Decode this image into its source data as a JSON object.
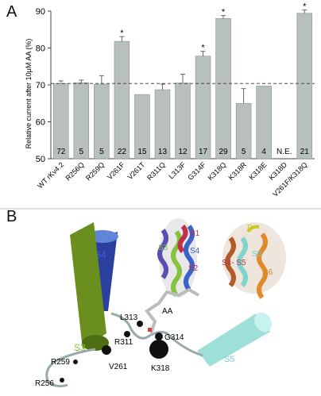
{
  "panels": {
    "a": "A",
    "b": "B"
  },
  "chart_data": {
    "type": "bar",
    "ylabel": "Relative current after 10μM AA (%)",
    "ylim": [
      50,
      90
    ],
    "yticks": [
      50,
      60,
      70,
      80,
      90
    ],
    "reference_line": 70.4,
    "categories": [
      "WT rKv4.2",
      "R256Q",
      "R259Q",
      "V261F",
      "V261T",
      "R311Q",
      "L313F",
      "G314F",
      "K318Q",
      "K318R",
      "K318E",
      "K318D",
      "V261F/K318Q"
    ],
    "values": [
      70.3,
      70.6,
      70.2,
      81.8,
      67.4,
      68.7,
      70.5,
      77.8,
      88.0,
      65.0,
      69.7,
      null,
      89.4
    ],
    "errors": [
      0.8,
      0.7,
      2.3,
      1.3,
      0,
      1.5,
      2.4,
      1.3,
      0.8,
      4.0,
      0,
      null,
      0.9
    ],
    "n": [
      "72",
      "5",
      "5",
      "22",
      "15",
      "13",
      "12",
      "17",
      "29",
      "5",
      "4",
      "N.E.",
      "21"
    ],
    "significant": [
      false,
      false,
      false,
      true,
      false,
      false,
      false,
      true,
      true,
      false,
      false,
      false,
      true
    ],
    "star": "*",
    "bar_color": "#b8bfbf"
  },
  "structure": {
    "helices": {
      "s1": "S1",
      "s2": "S2",
      "s3": "S3",
      "s4": "S4",
      "s5": "S5",
      "s6": "S6",
      "p": "P",
      "s45": "S4- S5"
    },
    "big": {
      "s3": "S3",
      "s4": "S4",
      "s5": "S5"
    },
    "residues": {
      "l313": "L313",
      "aa": "AA",
      "r311": "R311",
      "g314": "G314",
      "k318": "K318",
      "r259": "R259",
      "v261": "V261",
      "r256": "R256"
    },
    "colors": {
      "s3": "#6a8f1f",
      "s4": "#2a3f9c",
      "s5": "#9ee0d8",
      "s1": "#c0304a",
      "s6": "#d9822b",
      "p_label": "#c8c820"
    }
  }
}
